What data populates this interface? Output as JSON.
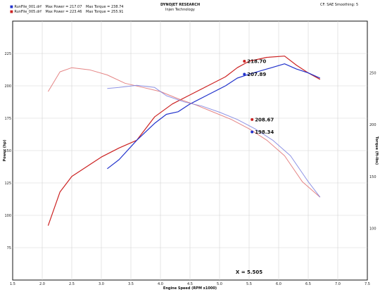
{
  "header": {
    "title": "DYNOJET RESEARCH",
    "subtitle": "Injen Technology",
    "corr": "CF: SAE  Smoothing: 5",
    "runs": [
      {
        "file": "RunFile_001.drf",
        "power_text": "Max Power = 217.07",
        "torque_text": "Max Torque = 238.74",
        "color": "#2233cc"
      },
      {
        "file": "RunFile_005.drf",
        "power_text": "Max Power = 223.46",
        "torque_text": "Max Torque = 255.91",
        "color": "#cc2222"
      }
    ]
  },
  "chart_data": {
    "type": "line",
    "xlabel": "Engine Speed (RPM x1000)",
    "ylabel_left": "Power (hp)",
    "ylabel_right": "Torque (ft-lbs)",
    "xlim": [
      1.5,
      7.5
    ],
    "ylim_left": [
      50,
      250
    ],
    "ylim_right": [
      50,
      300
    ],
    "x_ticks": [
      "1.5",
      "2.0",
      "2.5",
      "3.0",
      "3.5",
      "4.0",
      "4.5",
      "5.0",
      "5.5",
      "6.0",
      "6.5",
      "7.0",
      "7.5"
    ],
    "y_left_ticks": [
      "75",
      "100",
      "125",
      "150",
      "175",
      "200",
      "225"
    ],
    "y_right_ticks": [
      "100",
      "150",
      "200",
      "250"
    ],
    "grid": true,
    "series": [
      {
        "name": "RunFile_005.drf",
        "kind": "power",
        "color": "#cc2222",
        "x": [
          2.1,
          2.3,
          2.5,
          2.8,
          3.0,
          3.3,
          3.6,
          3.9,
          4.2,
          4.5,
          4.8,
          5.1,
          5.3,
          5.5,
          5.8,
          6.1,
          6.3,
          6.5,
          6.7
        ],
        "y": [
          92,
          118,
          130,
          139,
          145,
          152,
          158,
          176,
          186,
          193,
          200,
          207,
          214,
          219,
          222,
          223,
          216,
          210,
          205
        ]
      },
      {
        "name": "RunFile_001.drf",
        "kind": "power",
        "color": "#2233cc",
        "x": [
          3.1,
          3.3,
          3.6,
          3.9,
          4.1,
          4.3,
          4.5,
          4.8,
          5.1,
          5.3,
          5.5,
          5.8,
          6.1,
          6.3,
          6.5,
          6.7
        ],
        "y": [
          136,
          143,
          158,
          171,
          178,
          180,
          186,
          193,
          200,
          206,
          209,
          213,
          217,
          213,
          210,
          206
        ]
      },
      {
        "name": "RunFile_005.drf",
        "kind": "torque",
        "color": "#e07070",
        "x": [
          2.1,
          2.3,
          2.5,
          2.8,
          3.1,
          3.4,
          3.7,
          4.0,
          4.3,
          4.6,
          4.9,
          5.2,
          5.5,
          5.8,
          6.1,
          6.4,
          6.7
        ],
        "y": [
          232,
          251,
          255,
          253,
          248,
          240,
          236,
          232,
          225,
          219,
          212,
          205,
          196,
          185,
          170,
          145,
          130
        ]
      },
      {
        "name": "RunFile_001.drf",
        "kind": "torque",
        "color": "#7a80e0",
        "x": [
          3.1,
          3.3,
          3.6,
          3.9,
          4.1,
          4.4,
          4.7,
          5.0,
          5.3,
          5.6,
          5.9,
          6.2,
          6.5,
          6.7
        ],
        "y": [
          235,
          236,
          238,
          236,
          228,
          222,
          218,
          212,
          205,
          196,
          185,
          170,
          145,
          130
        ]
      }
    ],
    "annotations": [
      {
        "text": "218.70",
        "x": 5.42,
        "y": 219,
        "axis": "left",
        "color": "#cc2222"
      },
      {
        "text": "207.89",
        "x": 5.42,
        "y": 209,
        "axis": "left",
        "color": "#2233cc"
      },
      {
        "text": "208.67",
        "x": 5.55,
        "y": 205,
        "axis": "right",
        "color": "#cc2222"
      },
      {
        "text": "198.34",
        "x": 5.55,
        "y": 193,
        "axis": "right",
        "color": "#2233cc"
      },
      {
        "text": "X = 5.505",
        "x": 5.5,
        "y": 55,
        "axis": "left",
        "color": "#111111"
      }
    ]
  }
}
